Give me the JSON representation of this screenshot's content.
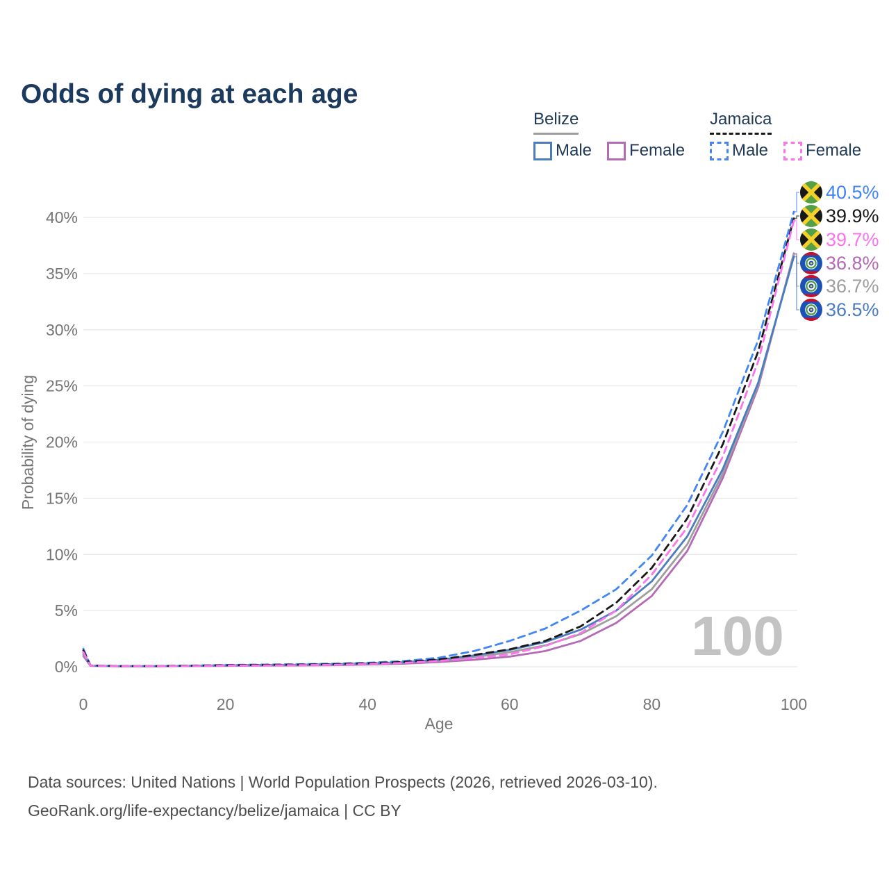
{
  "title": "Odds of dying at each age",
  "legend": {
    "belize": {
      "country": "Belize",
      "male_label": "Male",
      "female_label": "Female"
    },
    "jamaica": {
      "country": "Jamaica",
      "male_label": "Male",
      "female_label": "Female"
    }
  },
  "colors": {
    "title": "#1b3a5e",
    "legend_text": "#213a56",
    "axis_text": "#757575",
    "gridline": "#e8e8e8",
    "watermark": "#c3c3c3",
    "footer_text": "#4d4d4d",
    "belize_male": "#4b7cbe",
    "belize_all": "#9e9e9e",
    "belize_female": "#b46ab4",
    "jamaica_male": "#4285f4",
    "jamaica_all": "#181818",
    "jamaica_female": "#fb74ec",
    "flag_jamaica": {
      "green": "#55a046",
      "black": "#181818",
      "gold": "#f3d02a"
    },
    "flag_belize": {
      "blue": "#1a52b5",
      "red": "#c8102e",
      "white": "#ffffff",
      "green": "#4a9a40",
      "gold": "#f3d02a"
    }
  },
  "watermark": "100",
  "footer": {
    "line1": "Data sources: United Nations | World Population Prospects (2026, retrieved 2026-03-10).",
    "line2": "GeoRank.org/life-expectancy/belize/jamaica | CC BY"
  },
  "chart_data": {
    "type": "line",
    "title": "Odds of dying at each age",
    "xlabel": "Age",
    "ylabel": "Probability of dying",
    "x_ticks": [
      0,
      20,
      40,
      60,
      80,
      100
    ],
    "y_ticks_percent": [
      0,
      5,
      10,
      15,
      20,
      25,
      30,
      35,
      40
    ],
    "xlim": [
      0,
      100
    ],
    "ylim_percent": [
      0,
      42
    ],
    "grid": "horizontal-only",
    "legend_position": "top-right",
    "hover_age_indicator": "100",
    "ages": [
      0,
      1,
      5,
      10,
      15,
      20,
      25,
      30,
      35,
      40,
      45,
      50,
      55,
      60,
      65,
      70,
      75,
      80,
      85,
      90,
      95,
      100
    ],
    "series": [
      {
        "name": "Jamaica Male",
        "country": "Jamaica",
        "sex": "male",
        "style": "dashed",
        "color": "#4285f4",
        "flag": "jamaica",
        "end_label": "40.5%",
        "values_percent": [
          1.6,
          0.12,
          0.06,
          0.06,
          0.1,
          0.16,
          0.19,
          0.22,
          0.27,
          0.35,
          0.5,
          0.8,
          1.4,
          2.3,
          3.4,
          5.0,
          6.9,
          9.9,
          14.4,
          20.9,
          29.1,
          40.5
        ]
      },
      {
        "name": "Jamaica",
        "country": "Jamaica",
        "sex": "both",
        "style": "dashed",
        "color": "#181818",
        "flag": "jamaica",
        "end_label": "39.9%",
        "values_percent": [
          1.45,
          0.11,
          0.06,
          0.06,
          0.09,
          0.13,
          0.16,
          0.18,
          0.22,
          0.3,
          0.42,
          0.65,
          1.05,
          1.55,
          2.3,
          3.6,
          5.7,
          8.8,
          13.2,
          19.8,
          28.1,
          39.9
        ]
      },
      {
        "name": "Jamaica Female",
        "country": "Jamaica",
        "sex": "female",
        "style": "dashed",
        "color": "#fb74ec",
        "flag": "jamaica",
        "end_label": "39.7%",
        "values_percent": [
          1.3,
          0.1,
          0.05,
          0.05,
          0.07,
          0.1,
          0.12,
          0.14,
          0.17,
          0.24,
          0.34,
          0.52,
          0.78,
          1.1,
          1.85,
          3.0,
          5.0,
          8.2,
          12.4,
          18.7,
          27.2,
          39.7
        ]
      },
      {
        "name": "Belize Female",
        "country": "Belize",
        "sex": "female",
        "style": "solid",
        "color": "#b46ab4",
        "flag": "belize",
        "end_label": "36.8%",
        "values_percent": [
          0.95,
          0.08,
          0.04,
          0.04,
          0.06,
          0.08,
          0.1,
          0.12,
          0.14,
          0.19,
          0.27,
          0.42,
          0.62,
          0.9,
          1.4,
          2.3,
          3.9,
          6.3,
          10.3,
          16.8,
          24.9,
          36.8
        ]
      },
      {
        "name": "Belize",
        "country": "Belize",
        "sex": "both",
        "style": "solid",
        "color": "#9e9e9e",
        "flag": "belize",
        "end_label": "36.7%",
        "values_percent": [
          1.1,
          0.09,
          0.05,
          0.05,
          0.07,
          0.11,
          0.13,
          0.15,
          0.18,
          0.25,
          0.35,
          0.54,
          0.85,
          1.3,
          1.9,
          2.9,
          4.5,
          6.9,
          10.9,
          17.2,
          25.1,
          36.7
        ]
      },
      {
        "name": "Belize Male",
        "country": "Belize",
        "sex": "male",
        "style": "solid",
        "color": "#4b7cbe",
        "flag": "belize",
        "end_label": "36.5%",
        "values_percent": [
          1.25,
          0.1,
          0.05,
          0.05,
          0.08,
          0.13,
          0.16,
          0.18,
          0.22,
          0.29,
          0.4,
          0.62,
          1.0,
          1.5,
          2.2,
          3.3,
          5.0,
          7.6,
          11.6,
          17.6,
          25.3,
          36.5
        ]
      }
    ],
    "end_labels_order": [
      "40.5%",
      "39.9%",
      "39.7%",
      "36.8%",
      "36.7%",
      "36.5%"
    ]
  }
}
